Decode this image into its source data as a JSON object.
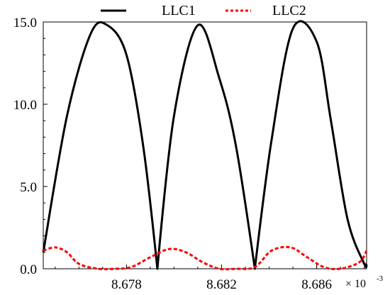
{
  "chart_data": {
    "type": "line",
    "x_exponent_label": "× 10",
    "x_exponent_power": "-3",
    "xlim": [
      8.6745,
      8.6881
    ],
    "ylim": [
      0,
      15
    ],
    "x_ticks": [
      8.678,
      8.682,
      8.686
    ],
    "x_tick_labels": [
      "8.678",
      "8.682",
      "8.686"
    ],
    "y_ticks": [
      0,
      5,
      10,
      15
    ],
    "y_tick_labels": [
      "0.0",
      "5.0",
      "10.0",
      "15.0"
    ],
    "legend_position": "top",
    "series": [
      {
        "name": "LLC1",
        "color": "#000000",
        "style": "solid",
        "x": [
          8.6745,
          8.6755,
          8.6765,
          8.6772,
          8.678,
          8.6787,
          8.6793,
          8.68,
          8.681,
          8.6819,
          8.6826,
          8.6834,
          8.6841,
          8.685,
          8.686,
          8.6866,
          8.6873,
          8.688,
          8.6881
        ],
        "y": [
          1.0,
          9.3,
          14.3,
          14.8,
          13.0,
          7.5,
          0.0,
          9.3,
          14.8,
          11.6,
          7.5,
          0.0,
          7.8,
          14.6,
          13.8,
          9.0,
          3.0,
          0.3,
          0.3
        ]
      },
      {
        "name": "LLC2",
        "color": "#ff0000",
        "style": "dashed",
        "x": [
          8.6745,
          8.675,
          8.6755,
          8.676,
          8.6768,
          8.6775,
          8.6782,
          8.679,
          8.6798,
          8.6805,
          8.6812,
          8.6819,
          8.6826,
          8.6834,
          8.6841,
          8.6849,
          8.6856,
          8.6863,
          8.687,
          8.6878,
          8.6881
        ],
        "y": [
          1.1,
          1.3,
          1.0,
          0.3,
          0.0,
          0.0,
          0.1,
          0.7,
          1.2,
          1.0,
          0.4,
          0.0,
          0.0,
          0.1,
          1.1,
          1.3,
          0.7,
          0.1,
          0.0,
          0.4,
          1.1
        ]
      }
    ]
  }
}
